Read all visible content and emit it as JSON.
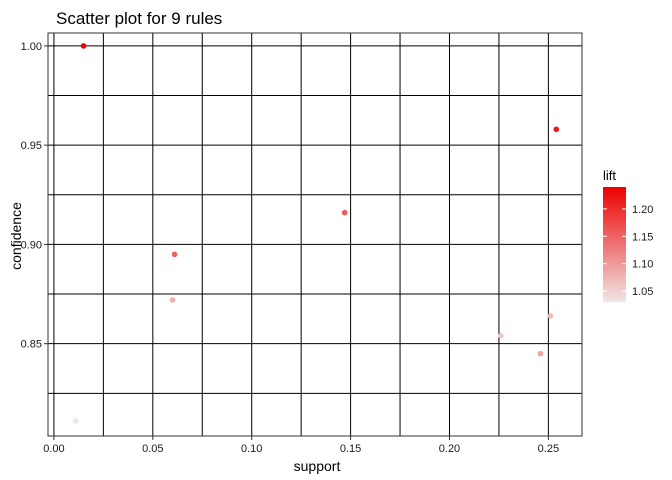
{
  "chart_data": {
    "type": "scatter",
    "title": "Scatter plot for 9 rules",
    "xlabel": "support",
    "ylabel": "confidence",
    "xlim": [
      -0.003,
      0.267
    ],
    "ylim": [
      0.8035,
      1.0065
    ],
    "x_ticks": [
      "0.00",
      "0.05",
      "0.10",
      "0.15",
      "0.20",
      "0.25"
    ],
    "x_tick_values": [
      0.0,
      0.05,
      0.1,
      0.15,
      0.2,
      0.25
    ],
    "y_ticks": [
      "0.85",
      "0.90",
      "0.95",
      "1.00"
    ],
    "y_tick_values": [
      0.85,
      0.9,
      0.95,
      1.0
    ],
    "grid": true,
    "legend": {
      "title": "lift",
      "placement": "right",
      "ticks": [
        "1.05",
        "1.10",
        "1.15",
        "1.20"
      ],
      "tick_values": [
        1.05,
        1.1,
        1.15,
        1.2
      ],
      "range": [
        1.03,
        1.24
      ],
      "color_low": "#f0e6e6",
      "color_high": "#ee0000"
    },
    "points": [
      {
        "support": 0.015,
        "confidence": 1.0,
        "lift": 1.24
      },
      {
        "support": 0.254,
        "confidence": 0.958,
        "lift": 1.22
      },
      {
        "support": 0.147,
        "confidence": 0.916,
        "lift": 1.16
      },
      {
        "support": 0.061,
        "confidence": 0.895,
        "lift": 1.15
      },
      {
        "support": 0.06,
        "confidence": 0.872,
        "lift": 1.08
      },
      {
        "support": 0.226,
        "confidence": 0.854,
        "lift": 1.06
      },
      {
        "support": 0.251,
        "confidence": 0.864,
        "lift": 1.07
      },
      {
        "support": 0.246,
        "confidence": 0.845,
        "lift": 1.09
      },
      {
        "support": 0.011,
        "confidence": 0.811,
        "lift": 1.03
      }
    ]
  }
}
